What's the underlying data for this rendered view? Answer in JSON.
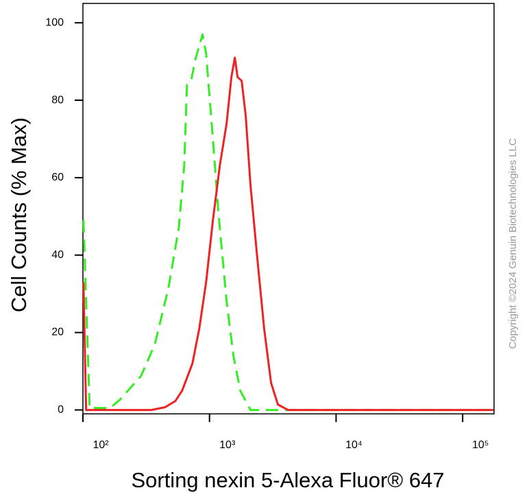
{
  "chart_data": {
    "type": "line",
    "xlabel": "Sorting nexin 5-Alexa Fluor® 647",
    "ylabel": "Cell Counts (% Max)",
    "annotation": "Copyright ©2024 Genuin Biotechnologies LLC",
    "xscale": "log",
    "xlim": [
      100,
      177000
    ],
    "ylim": [
      -1,
      105
    ],
    "xticks": [
      {
        "value": 100,
        "label": "10²"
      },
      {
        "value": 1000,
        "label": "10³"
      },
      {
        "value": 10000,
        "label": "10⁴"
      },
      {
        "value": 100000,
        "label": "10⁵"
      }
    ],
    "yticks": [
      0,
      20,
      40,
      60,
      80,
      100
    ],
    "series": [
      {
        "color": "#33ee22",
        "dash": true,
        "x": [
          101,
          113,
          164,
          198,
          288,
          370,
          474,
          572,
          631,
          664,
          715,
          780,
          883,
          940,
          1064,
          1176,
          1365,
          1546,
          1750,
          2110,
          3264,
          11320,
          175000
        ],
        "values": [
          49,
          0.5,
          0.5,
          2.8,
          8.8,
          17,
          31.5,
          47,
          63,
          84,
          85,
          91,
          97,
          92,
          70,
          51,
          28,
          14,
          5,
          0,
          0,
          0,
          0
        ]
      },
      {
        "color": "#ee2222",
        "dash": false,
        "x": [
          101,
          106,
          113,
          271,
          347,
          445,
          537,
          608,
          733,
          830,
          940,
          1064,
          1205,
          1365,
          1489,
          1585,
          1667,
          1795,
          1932,
          2110,
          2388,
          2704,
          3064,
          3473,
          4188,
          11320,
          175000
        ],
        "values": [
          33,
          0,
          0,
          0,
          0,
          0.7,
          2.3,
          5,
          12,
          21,
          33,
          49,
          63,
          74,
          86,
          91,
          86,
          85,
          76,
          58,
          39,
          21,
          7,
          1.4,
          0,
          0,
          0
        ]
      }
    ]
  }
}
